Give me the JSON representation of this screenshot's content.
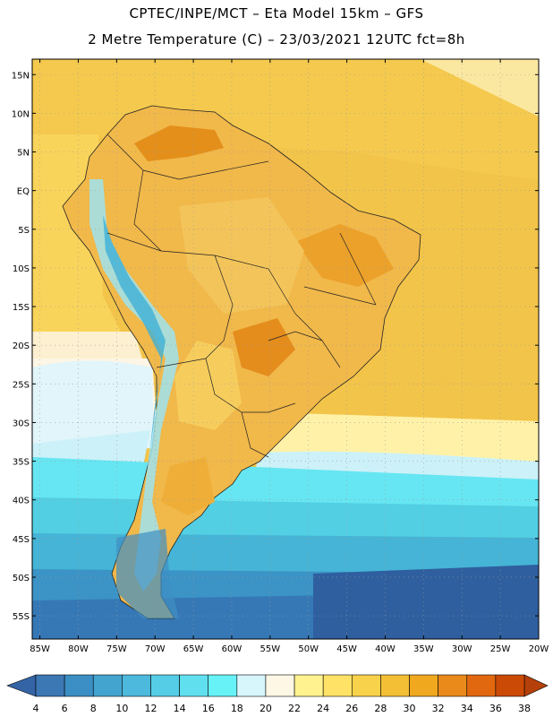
{
  "header": {
    "line1": "CPTEC/INPE/MCT –  Eta Model 15km – GFS",
    "line2": "2 Metre Temperature (C) – 23/03/2021 12UTC fct=8h"
  },
  "map": {
    "lat_labels": [
      "15N",
      "10N",
      "5N",
      "EQ",
      "5S",
      "10S",
      "15S",
      "20S",
      "25S",
      "30S",
      "35S",
      "40S",
      "45S",
      "50S",
      "55S"
    ],
    "lon_labels": [
      "85W",
      "80W",
      "75W",
      "70W",
      "65W",
      "60W",
      "55W",
      "50W",
      "45W",
      "40W",
      "35W",
      "30W",
      "25W",
      "20W"
    ],
    "lat_values": [
      15,
      10,
      5,
      0,
      -5,
      -10,
      -15,
      -20,
      -25,
      -30,
      -35,
      -40,
      -45,
      -50,
      -55
    ],
    "lon_values": [
      -85,
      -80,
      -75,
      -70,
      -65,
      -60,
      -55,
      -50,
      -45,
      -40,
      -35,
      -30,
      -25,
      -20
    ],
    "extent": {
      "lon_min": -86,
      "lon_max": -20,
      "lat_min": -58,
      "lat_max": 17
    }
  },
  "colorbar": {
    "labels": [
      "4",
      "6",
      "8",
      "10",
      "12",
      "14",
      "16",
      "18",
      "20",
      "22",
      "24",
      "26",
      "28",
      "30",
      "32",
      "34",
      "36",
      "38"
    ],
    "colors": [
      "#3c78b4",
      "#3b8fc4",
      "#43a5cf",
      "#4db9dc",
      "#55cde6",
      "#60e0ef",
      "#66f2f7",
      "#d7f6fb",
      "#fff7e6",
      "#fff28f",
      "#ffe266",
      "#f9d24b",
      "#f2bf35",
      "#f0a81f",
      "#e98a1b",
      "#e2680f",
      "#cb4a05"
    ],
    "under_color": "#3464a6",
    "over_color": "#b5400a"
  }
}
